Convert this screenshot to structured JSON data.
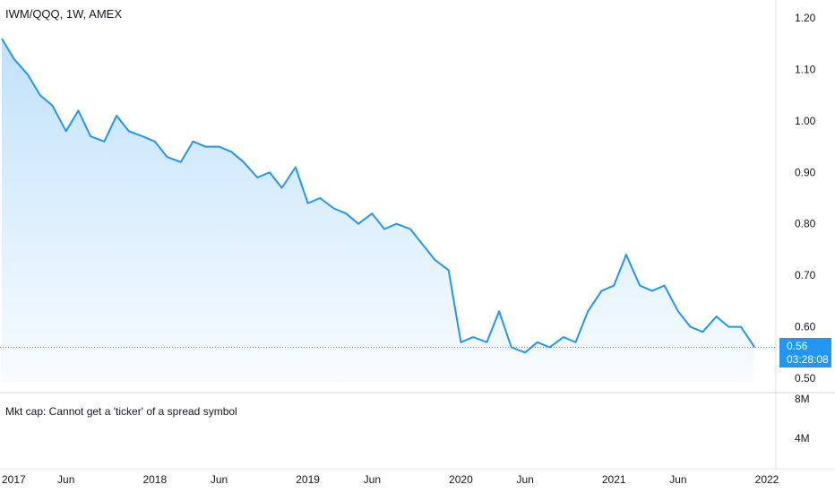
{
  "chart_data": {
    "type": "line",
    "title": "IWM/QQQ, 1W, AMEX",
    "ylim": [
      0.5,
      1.2
    ],
    "yticks": [
      "1.20",
      "1.10",
      "1.00",
      "0.90",
      "0.80",
      "0.70",
      "0.60",
      "0.50"
    ],
    "xticks": [
      "2017",
      "Jun",
      "2018",
      "Jun",
      "2019",
      "Jun",
      "2020",
      "Jun",
      "2021",
      "Jun",
      "2022"
    ],
    "series": [
      {
        "color": "#2196f3",
        "x": [
          2017.0,
          2017.08,
          2017.17,
          2017.25,
          2017.33,
          2017.42,
          2017.5,
          2017.58,
          2017.67,
          2017.75,
          2017.83,
          2017.92,
          2018.0,
          2018.08,
          2018.17,
          2018.25,
          2018.33,
          2018.42,
          2018.5,
          2018.58,
          2018.67,
          2018.75,
          2018.83,
          2018.92,
          2019.0,
          2019.08,
          2019.17,
          2019.25,
          2019.33,
          2019.42,
          2019.5,
          2019.58,
          2019.67,
          2019.75,
          2019.83,
          2019.92,
          2020.0,
          2020.08,
          2020.17,
          2020.25,
          2020.33,
          2020.42,
          2020.5,
          2020.58,
          2020.67,
          2020.75,
          2020.83,
          2020.92,
          2021.0,
          2021.08,
          2021.17,
          2021.25,
          2021.33,
          2021.42,
          2021.5,
          2021.58,
          2021.67,
          2021.75,
          2021.83,
          2021.92
        ],
        "values": [
          1.16,
          1.12,
          1.09,
          1.05,
          1.03,
          0.98,
          1.02,
          0.97,
          0.96,
          1.01,
          0.98,
          0.97,
          0.96,
          0.93,
          0.92,
          0.96,
          0.95,
          0.95,
          0.94,
          0.92,
          0.89,
          0.9,
          0.87,
          0.91,
          0.84,
          0.85,
          0.83,
          0.82,
          0.8,
          0.82,
          0.79,
          0.8,
          0.79,
          0.76,
          0.73,
          0.71,
          0.57,
          0.58,
          0.57,
          0.63,
          0.56,
          0.55,
          0.57,
          0.56,
          0.58,
          0.57,
          0.63,
          0.67,
          0.68,
          0.74,
          0.68,
          0.67,
          0.68,
          0.63,
          0.6,
          0.59,
          0.62,
          0.6,
          0.6,
          0.56
        ]
      }
    ],
    "last_value": "0.56",
    "countdown": "03:28:08",
    "volume_axis_ticks": [
      "8M",
      "4M"
    ],
    "grid": false
  },
  "text": {
    "symbol": "IWM/QQQ, 1W, AMEX",
    "mkt_cap": "Mkt cap: Cannot get a 'ticker' of a spread symbol"
  }
}
